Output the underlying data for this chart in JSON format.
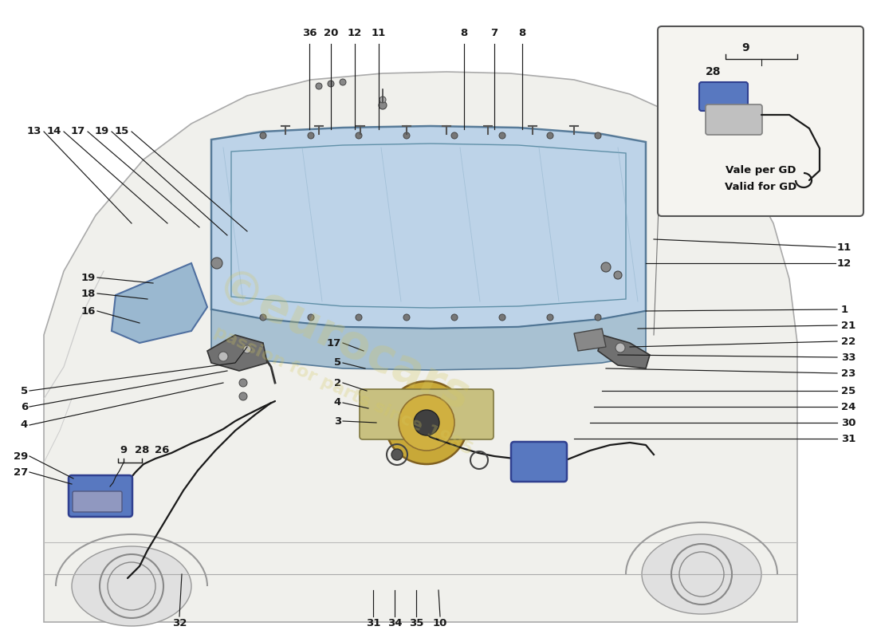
{
  "bg_color": "#ffffff",
  "line_color": "#1a1a1a",
  "label_color": "#1a1a1a",
  "label_fontsize": 9.5,
  "lid_color": "#a8c4dc",
  "lid_edge_color": "#4a7090",
  "car_body_color": "#f0f0ec",
  "car_edge_color": "#aaaaaa",
  "inset_bg": "#f5f4f0",
  "inset_edge": "#555555",
  "inset_label1": "Vale per GD",
  "inset_label2": "Valid for GD",
  "wm_color": "#d4c860",
  "wm_alpha": 0.28
}
